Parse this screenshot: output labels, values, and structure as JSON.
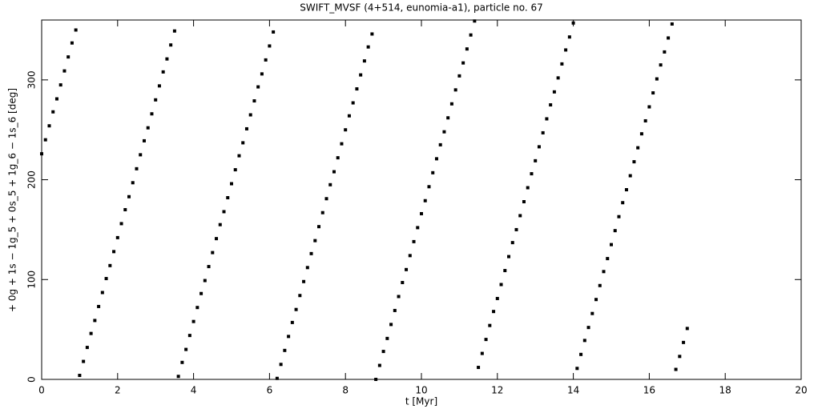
{
  "chart_data": {
    "type": "scatter",
    "title": "SWIFT_MVSF (4+514, eunomia-a1), particle no. 67",
    "x_label": "t [Myr]",
    "y_label": "+ 0g + 1s − 1g_5 + 0s_5 + 1g_6 − 1s_6 [deg]",
    "xlim": [
      0,
      20
    ],
    "ylim": [
      0,
      360
    ],
    "xticks": [
      0,
      2,
      4,
      6,
      8,
      10,
      12,
      14,
      16,
      18,
      20
    ],
    "yticks": [
      0,
      100,
      200,
      300
    ],
    "color": "#000000",
    "x": [
      0,
      0.1,
      0.2,
      0.3,
      0.4,
      0.5,
      0.6,
      0.7,
      0.8,
      0.9,
      1,
      1.1,
      1.2,
      1.3,
      1.4,
      1.5,
      1.6,
      1.7,
      1.8,
      1.9,
      2,
      2.1,
      2.2,
      2.3,
      2.4,
      2.5,
      2.6,
      2.7,
      2.8,
      2.9,
      3,
      3.1,
      3.2,
      3.3,
      3.4,
      3.5,
      3.6,
      3.7,
      3.8,
      3.9,
      4,
      4.1,
      4.2,
      4.3,
      4.4,
      4.5,
      4.6,
      4.7,
      4.8,
      4.9,
      5,
      5.1,
      5.2,
      5.3,
      5.4,
      5.5,
      5.6,
      5.7,
      5.8,
      5.9,
      6,
      6.1,
      6.2,
      6.3,
      6.4,
      6.5,
      6.6,
      6.7,
      6.8,
      6.9,
      7,
      7.1,
      7.2,
      7.3,
      7.4,
      7.5,
      7.6,
      7.7,
      7.8,
      7.9,
      8,
      8.1,
      8.2,
      8.3,
      8.4,
      8.5,
      8.6,
      8.7,
      8.8,
      8.9,
      9,
      9.1,
      9.2,
      9.3,
      9.4,
      9.5,
      9.6,
      9.7,
      9.8,
      9.9,
      10,
      10.1,
      10.2,
      10.3,
      10.4,
      10.5,
      10.6,
      10.7,
      10.8,
      10.9,
      11,
      11.1,
      11.2,
      11.3,
      11.4,
      11.5,
      11.6,
      11.7,
      11.8,
      11.9,
      12,
      12.1,
      12.2,
      12.3,
      12.4,
      12.5,
      12.6,
      12.7,
      12.8,
      12.9,
      13,
      13.1,
      13.2,
      13.3,
      13.4,
      13.5,
      13.6,
      13.7,
      13.8,
      13.9,
      14,
      14.1,
      14.2,
      14.3,
      14.4,
      14.5,
      14.6,
      14.7,
      14.8,
      14.9,
      15,
      15.1,
      15.2,
      15.3,
      15.4,
      15.5,
      15.6,
      15.7,
      15.8,
      15.9,
      16,
      16.1,
      16.2,
      16.3,
      16.4,
      16.5,
      16.6,
      16.7,
      16.8,
      16.9,
      17
    ],
    "values": [
      226,
      240,
      254,
      268,
      281,
      295,
      309,
      323,
      337,
      350,
      4,
      18,
      32,
      46,
      59,
      73,
      87,
      101,
      114,
      128,
      142,
      156,
      170,
      183,
      197,
      211,
      225,
      239,
      252,
      266,
      280,
      294,
      308,
      321,
      335,
      349,
      3,
      17,
      30,
      44,
      58,
      72,
      86,
      99,
      113,
      127,
      141,
      155,
      168,
      182,
      196,
      210,
      224,
      237,
      251,
      265,
      279,
      293,
      306,
      320,
      334,
      348,
      1,
      15,
      29,
      43,
      57,
      70,
      84,
      98,
      112,
      126,
      139,
      153,
      167,
      181,
      195,
      208,
      222,
      236,
      250,
      264,
      277,
      291,
      305,
      319,
      333,
      346,
      0,
      14,
      28,
      41,
      55,
      69,
      83,
      97,
      110,
      124,
      138,
      152,
      166,
      179,
      193,
      207,
      221,
      235,
      248,
      262,
      276,
      290,
      304,
      317,
      331,
      345,
      359,
      12,
      26,
      40,
      54,
      68,
      81,
      95,
      109,
      123,
      137,
      150,
      164,
      178,
      192,
      206,
      219,
      233,
      247,
      261,
      275,
      288,
      302,
      316,
      330,
      343,
      357,
      11,
      25,
      39,
      52,
      66,
      80,
      94,
      108,
      121,
      135,
      149,
      163,
      177,
      190,
      204,
      218,
      232,
      246,
      259,
      273,
      287,
      301,
      315,
      328,
      342,
      356,
      10,
      23,
      37,
      51
    ]
  }
}
